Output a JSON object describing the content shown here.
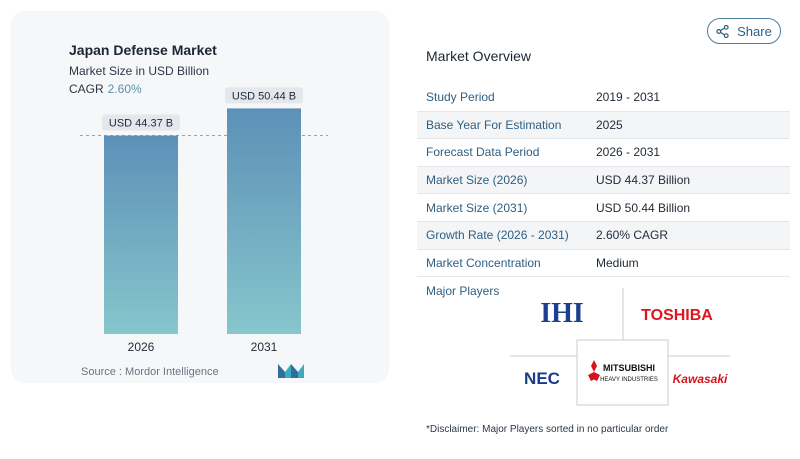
{
  "share": {
    "label": "Share",
    "icon": "share-icon"
  },
  "chart_data": {
    "type": "bar",
    "title": "Japan Defense Market",
    "subtitle": "Market Size in USD Billion",
    "cagr_label": "CAGR",
    "cagr_value": "2.60%",
    "categories": [
      "2026",
      "2031"
    ],
    "values": [
      44.37,
      50.44
    ],
    "data_labels": [
      "USD 44.37 B",
      "USD 50.44 B"
    ],
    "ylim": [
      0,
      55
    ],
    "grid": false,
    "reference_line": 44.37,
    "colors": {
      "bar_top": "#5d90b7",
      "bar_bottom": "#86c6cc"
    }
  },
  "source": {
    "label": "Source :",
    "value": "Mordor Intelligence"
  },
  "overview": {
    "title": "Market Overview",
    "rows": [
      {
        "key": "Study Period",
        "value": "2019 - 2031"
      },
      {
        "key": "Base Year For Estimation",
        "value": "2025"
      },
      {
        "key": "Forecast Data Period",
        "value": "2026 - 2031"
      },
      {
        "key": "Market Size (2026)",
        "value": "USD 44.37 Billion"
      },
      {
        "key": "Market Size (2031)",
        "value": "USD 50.44 Billion"
      },
      {
        "key": "Growth Rate (2026 - 2031)",
        "value": "2.60% CAGR"
      },
      {
        "key": "Market Concentration",
        "value": "Medium"
      }
    ],
    "players_label": "Major Players",
    "players": [
      "IHI",
      "TOSHIBA",
      "NEC",
      "MITSUBISHI",
      "HEAVY INDUSTRIES",
      "Kawasaki"
    ]
  },
  "disclaimer": "*Disclaimer: Major Players sorted in no particular order"
}
